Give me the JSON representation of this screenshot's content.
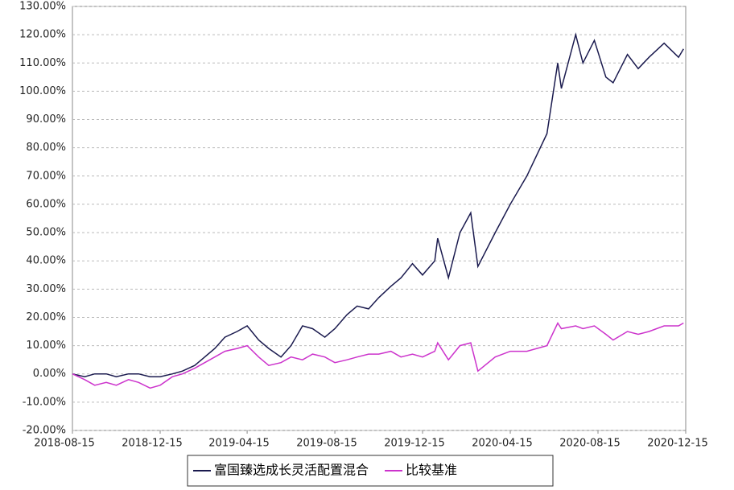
{
  "chart_data": {
    "type": "line",
    "x": [
      "2018-08-15",
      "2018-09-01",
      "2018-09-15",
      "2018-10-01",
      "2018-10-15",
      "2018-11-01",
      "2018-11-15",
      "2018-12-01",
      "2018-12-15",
      "2019-01-01",
      "2019-01-15",
      "2019-02-01",
      "2019-02-15",
      "2019-03-01",
      "2019-03-15",
      "2019-04-01",
      "2019-04-15",
      "2019-05-01",
      "2019-05-15",
      "2019-06-01",
      "2019-06-15",
      "2019-07-01",
      "2019-07-15",
      "2019-08-01",
      "2019-08-15",
      "2019-09-01",
      "2019-09-15",
      "2019-10-01",
      "2019-10-15",
      "2019-11-01",
      "2019-11-15",
      "2019-12-01",
      "2019-12-15",
      "2020-01-01",
      "2020-01-05",
      "2020-01-20",
      "2020-02-05",
      "2020-02-20",
      "2020-03-01",
      "2020-03-25",
      "2020-04-15",
      "2020-05-08",
      "2020-06-05",
      "2020-06-20",
      "2020-06-25",
      "2020-07-15",
      "2020-07-25",
      "2020-08-10",
      "2020-08-26",
      "2020-09-05",
      "2020-09-25",
      "2020-10-10",
      "2020-10-25",
      "2020-11-15",
      "2020-12-05",
      "2020-12-12"
    ],
    "series": [
      {
        "name": "富国臻选成长灵活配置混合",
        "color": "#1a1a4e",
        "values": [
          0,
          -1,
          0,
          0,
          -1,
          0,
          0,
          -1,
          -1,
          0,
          1,
          3,
          6,
          9,
          13,
          15,
          17,
          12,
          9,
          6,
          10,
          17,
          16,
          13,
          16,
          21,
          24,
          23,
          27,
          31,
          34,
          39,
          35,
          40,
          48,
          34,
          50,
          57,
          38,
          50,
          60,
          70,
          85,
          110,
          101,
          120,
          110,
          118,
          105,
          103,
          113,
          108,
          112,
          117,
          112,
          115
        ]
      },
      {
        "name": "比较基准",
        "color": "#cc33cc",
        "values": [
          0,
          -2,
          -4,
          -3,
          -4,
          -2,
          -3,
          -5,
          -4,
          -1,
          0,
          2,
          4,
          6,
          8,
          9,
          10,
          6,
          3,
          4,
          6,
          5,
          7,
          6,
          4,
          5,
          6,
          7,
          7,
          8,
          6,
          7,
          6,
          8,
          11,
          5,
          10,
          11,
          1,
          6,
          8,
          8,
          10,
          18,
          16,
          17,
          16,
          17,
          14,
          12,
          15,
          14,
          15,
          17,
          17,
          18
        ]
      }
    ],
    "xlim": [
      "2018-08-15",
      "2020-12-15"
    ],
    "xticks": [
      "2018-08-15",
      "2018-12-15",
      "2019-04-15",
      "2019-08-15",
      "2019-12-15",
      "2020-04-15",
      "2020-08-15",
      "2020-12-15"
    ],
    "ylim": [
      -20,
      130
    ],
    "yticks": [
      {
        "value": -20,
        "label": "-20.00%"
      },
      {
        "value": -10,
        "label": "-10.00%"
      },
      {
        "value": 0,
        "label": "0.00%"
      },
      {
        "value": 10,
        "label": "10.00%"
      },
      {
        "value": 20,
        "label": "20.00%"
      },
      {
        "value": 30,
        "label": "30.00%"
      },
      {
        "value": 40,
        "label": "40.00%"
      },
      {
        "value": 50,
        "label": "50.00%"
      },
      {
        "value": 60,
        "label": "60.00%"
      },
      {
        "value": 70,
        "label": "70.00%"
      },
      {
        "value": 80,
        "label": "80.00%"
      },
      {
        "value": 90,
        "label": "90.00%"
      },
      {
        "value": 100,
        "label": "100.00%"
      },
      {
        "value": 110,
        "label": "110.00%"
      },
      {
        "value": 120,
        "label": "120.00%"
      },
      {
        "value": 130,
        "label": "130.00%"
      }
    ],
    "grid": true
  }
}
